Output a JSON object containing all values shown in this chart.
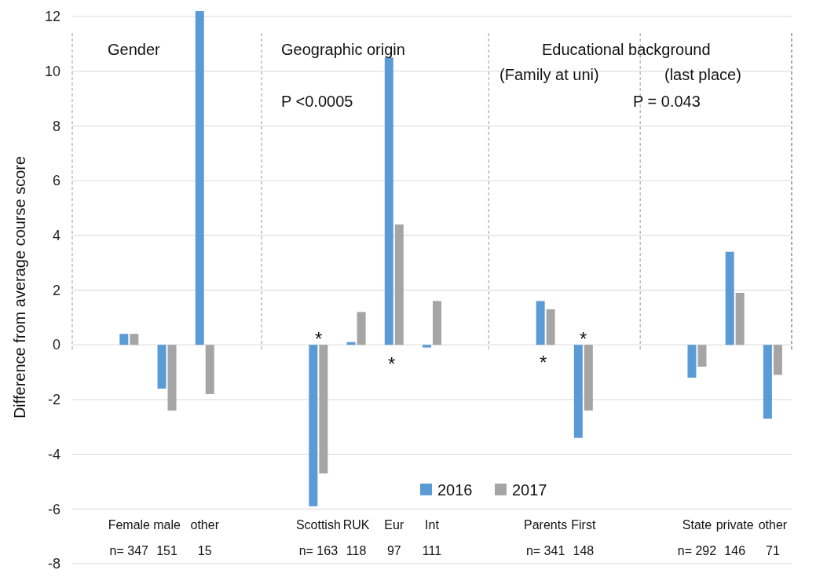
{
  "chart_data": {
    "type": "bar",
    "ylabel": "Difference from average course score",
    "categories": [
      null,
      "Female\nn= 347",
      "male\n151",
      "other\n15",
      null,
      null,
      "Scottish\nn= 163",
      "RUK\n118",
      "Eur\n97",
      "Int\n111",
      null,
      null,
      "Parents\nn= 341",
      "First\n148",
      null,
      null,
      "State\nn= 292",
      "private\n146",
      "other\n71"
    ],
    "series": [
      {
        "name": "2016",
        "color": "#5b9bd5",
        "values": [
          null,
          0.4,
          -1.6,
          12.2,
          null,
          null,
          -5.9,
          0.1,
          10.5,
          -0.1,
          null,
          null,
          1.6,
          -3.4,
          null,
          null,
          -1.2,
          3.4,
          -2.7
        ]
      },
      {
        "name": "2017",
        "color": "#a5a5a5",
        "values": [
          null,
          0.4,
          -2.4,
          -1.8,
          null,
          null,
          -4.7,
          1.2,
          4.4,
          1.6,
          null,
          null,
          1.3,
          -2.4,
          null,
          null,
          -0.8,
          1.9,
          -1.1
        ]
      }
    ],
    "ylim": [
      -8,
      12.2
    ],
    "yticks": [
      -8,
      -6,
      -4,
      -2,
      0,
      2,
      4,
      6,
      8,
      10,
      12
    ],
    "grid": "y",
    "legend": "bottom",
    "annotations": [
      "Gender",
      "Geographic origin",
      "Educational background",
      "(Family at uni)",
      "(last place)",
      "P <0.0005",
      "P = 0.043",
      "*",
      "*",
      "*",
      "*"
    ]
  }
}
